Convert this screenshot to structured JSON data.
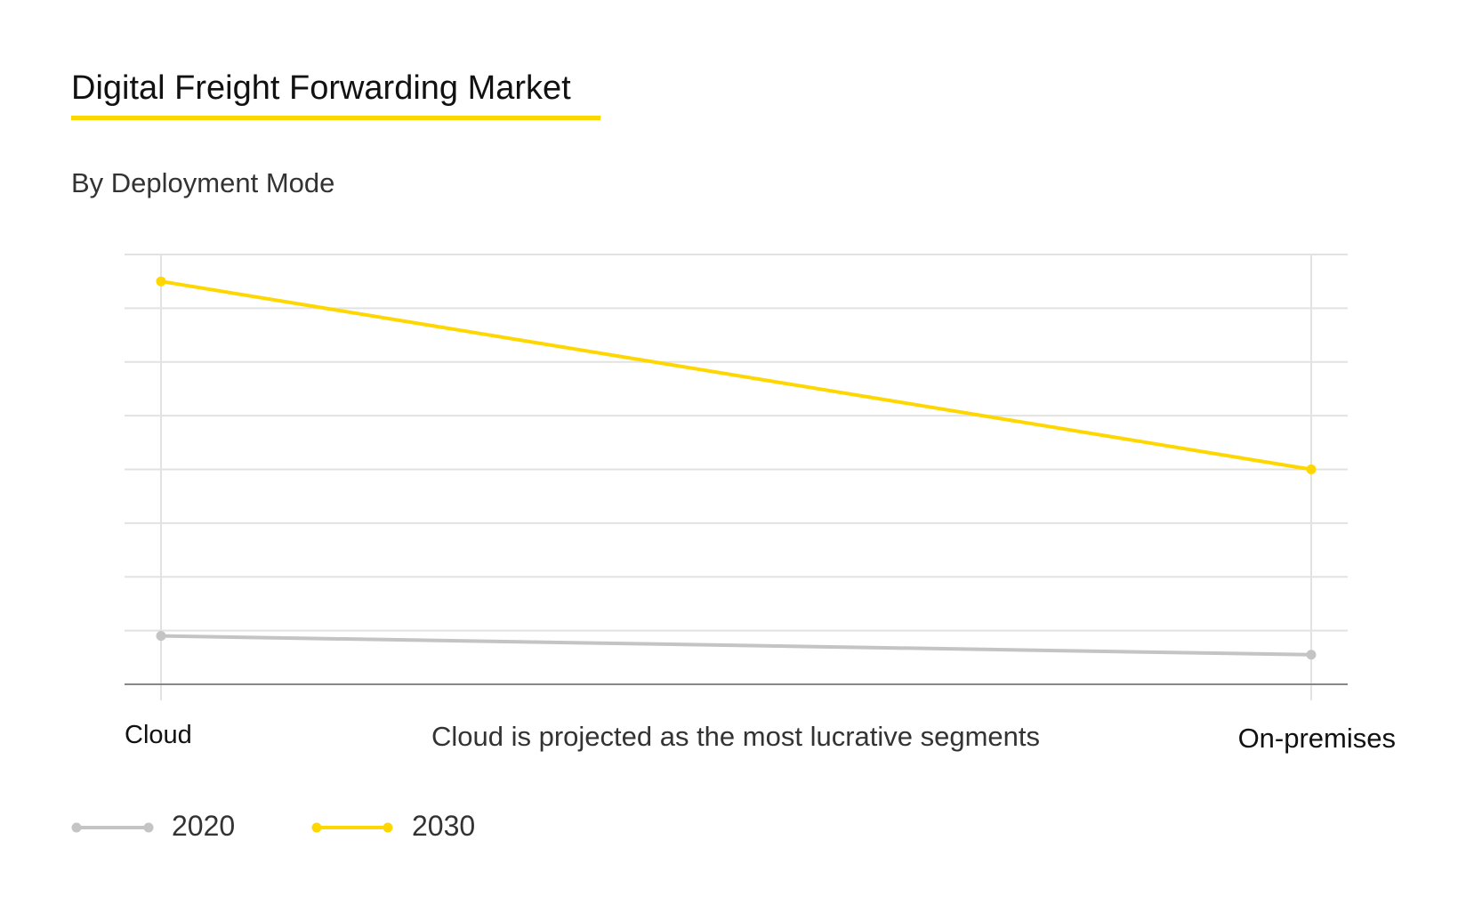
{
  "chart_data": {
    "type": "line",
    "title": "Digital Freight Forwarding Market",
    "subtitle": "By Deployment Mode",
    "categories": [
      "Cloud",
      "On-premises"
    ],
    "annotation": "Cloud is projected as the most lucrative segments",
    "ylim": [
      0,
      8
    ],
    "grid": true,
    "legend_placement": "bottom-left",
    "series": [
      {
        "name": "2020",
        "values": [
          0.9,
          0.55
        ],
        "color": "#C4C4C4"
      },
      {
        "name": "2030",
        "values": [
          7.5,
          4.0
        ],
        "color": "#FFD700"
      }
    ]
  }
}
